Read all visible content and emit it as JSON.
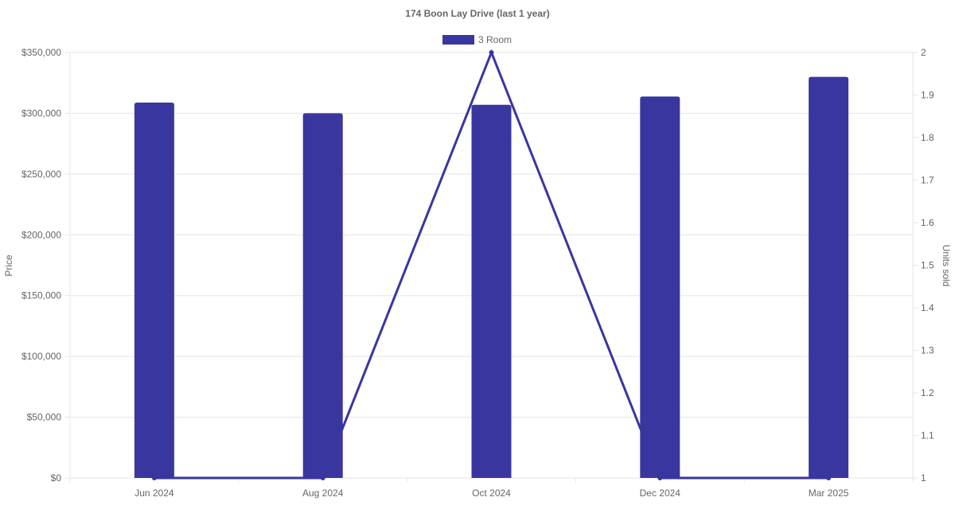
{
  "chart_data": {
    "type": "bar+line",
    "title": "174 Boon Lay Drive (last 1 year)",
    "categories": [
      "Jun 2024",
      "Aug 2024",
      "Oct 2024",
      "Dec 2024",
      "Mar 2025"
    ],
    "series": [
      {
        "name": "3 Room",
        "type": "bar",
        "axis": "left",
        "values": [
          308800,
          300000,
          307000,
          313800,
          330000
        ]
      },
      {
        "type": "line",
        "axis": "right",
        "values": [
          1,
          1,
          2,
          1,
          1
        ]
      }
    ],
    "ylabel": "Price",
    "y2label": "Units sold",
    "ylim": [
      0,
      350000
    ],
    "y2lim": [
      1,
      2
    ],
    "yticks": [
      "$0",
      "$50,000",
      "$100,000",
      "$150,000",
      "$200,000",
      "$250,000",
      "$300,000",
      "$350,000"
    ],
    "y2ticks": [
      "1",
      "1.1",
      "1.2",
      "1.3",
      "1.4",
      "1.5",
      "1.6",
      "1.7",
      "1.8",
      "1.9",
      "2"
    ],
    "grid": true,
    "legend": "top",
    "colors": {
      "bar": "#3a36a0",
      "line": "#3a36a0",
      "grid": "#e5e5e5"
    }
  }
}
